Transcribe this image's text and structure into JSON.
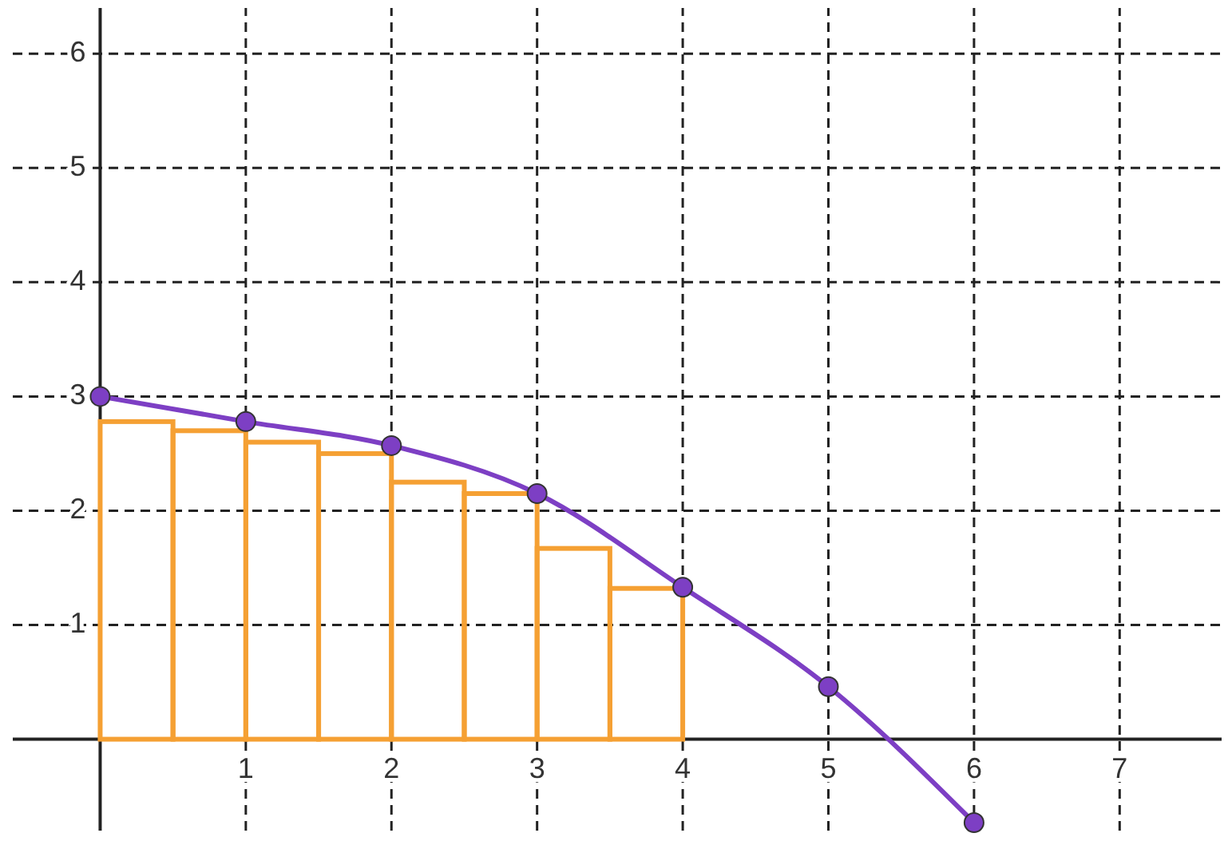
{
  "chart_data": {
    "type": "histogram",
    "xlim": [
      -0.6,
      7.7
    ],
    "ylim": [
      -0.8,
      6.4
    ],
    "xticks": [
      1,
      2,
      3,
      4,
      5,
      6,
      7
    ],
    "yticks": [
      1,
      2,
      3,
      4,
      5,
      6
    ],
    "grid": true,
    "bins": [
      0,
      0.5,
      1,
      1.5,
      2,
      2.5,
      3,
      3.5,
      4
    ],
    "series": [
      {
        "color": "#f5a033",
        "values": [
          2.78,
          2.7,
          2.6,
          2.5,
          2.25,
          2.15,
          1.67,
          1.32
        ]
      },
      {
        "type": "line",
        "color": "#7d3fc4",
        "x": [
          0,
          1,
          2,
          3,
          4,
          5,
          6
        ],
        "values": [
          3,
          2.78,
          2.57,
          2.15,
          1.33,
          0.46,
          -0.73
        ],
        "marker": "circle",
        "line_style": "solid"
      }
    ]
  }
}
